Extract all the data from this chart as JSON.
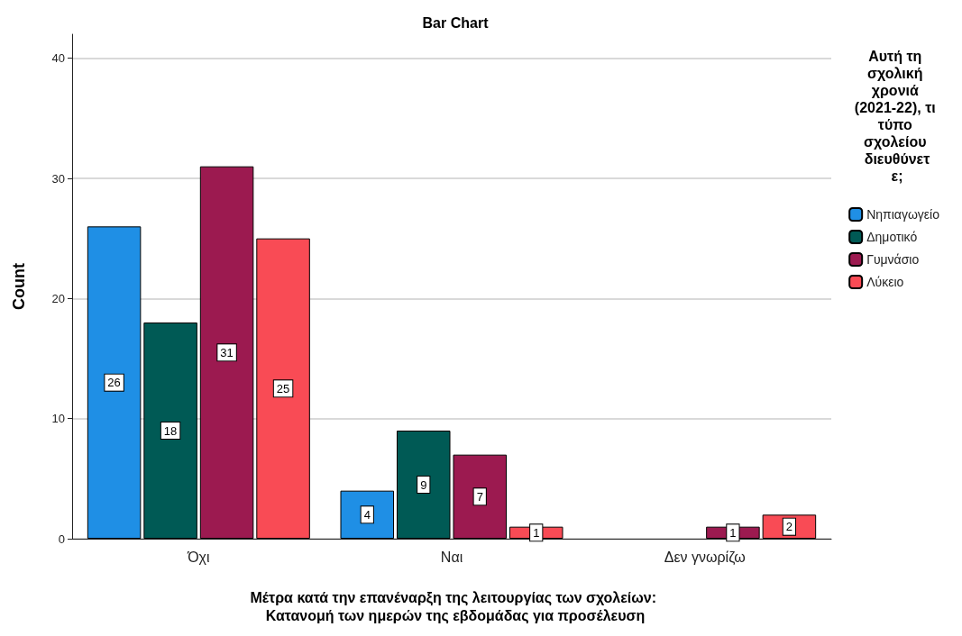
{
  "chart_data": {
    "type": "bar",
    "title": "Bar Chart",
    "xlabel": "Μέτρα κατά την επανέναρξη της λειτουργίας των σχολείων: Κατανομή των ημερών της εβδομάδας για προσέλευση",
    "ylabel": "Count",
    "legend_title": "Αυτή τη σχολική χρονιά (2021-22), τι τύπο σχολείου διευθύνετε;",
    "categories": [
      "Όχι",
      "Ναι",
      "Δεν γνωρίζω"
    ],
    "series": [
      {
        "name": "Νηπιαγωγείο",
        "color": "#1f8fe5",
        "values": [
          26,
          4,
          null
        ]
      },
      {
        "name": "Δημοτικό",
        "color": "#005a55",
        "values": [
          18,
          9,
          null
        ]
      },
      {
        "name": "Γυμνάσιο",
        "color": "#9c1a50",
        "values": [
          31,
          7,
          1
        ]
      },
      {
        "name": "Λύκειο",
        "color": "#f94b55",
        "values": [
          25,
          1,
          2
        ]
      }
    ],
    "ylim": [
      0,
      42
    ],
    "yticks": [
      0,
      10,
      20,
      30,
      40
    ],
    "grid": "y",
    "legend": "top right",
    "data_labels": true
  }
}
